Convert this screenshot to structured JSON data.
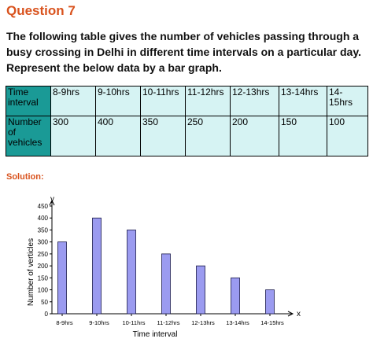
{
  "question": {
    "title": "Question 7",
    "text": "The following table gives the number of vehicles passing through a busy crossing in Delhi in different time intervals on a particular day. Represent the below data by a bar graph."
  },
  "table": {
    "header_row": [
      "Time interval",
      "8-9hrs",
      "9-10hrs",
      "10-11hrs",
      "11-12hrs",
      "12-13hrs",
      "13-14hrs",
      "14-15hrs"
    ],
    "value_row": [
      "Number of vehicles",
      "300",
      "400",
      "350",
      "250",
      "200",
      "150",
      "100"
    ]
  },
  "solution_label": "Solution:",
  "chart_data": {
    "type": "bar",
    "categories": [
      "8-9hrs",
      "9-10hrs",
      "10-11hrs",
      "11-12hrs",
      "12-13hrs",
      "13-14hrs",
      "14-15hrs"
    ],
    "values": [
      300,
      400,
      350,
      250,
      200,
      150,
      100
    ],
    "xlabel": "Time interval",
    "ylabel": "Number of verticles",
    "x_axis_letter": "x",
    "y_axis_letter": "y",
    "ylim": [
      0,
      450
    ],
    "yticks": [
      0,
      50,
      100,
      150,
      200,
      250,
      300,
      350,
      400,
      450
    ],
    "grid": false,
    "bar_color": "#9b9bf0",
    "bar_outline_color": "#1a1a4a"
  },
  "colors": {
    "heading": "#d9531e",
    "table_header_fill": "#1a9a96",
    "table_cell_fill": "#d6f3f3"
  }
}
